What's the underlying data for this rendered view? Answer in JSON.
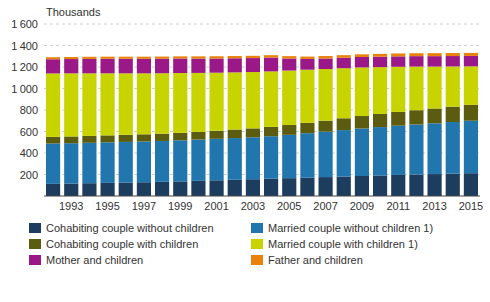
{
  "chart_data": {
    "type": "bar",
    "stacked": true,
    "grid": true,
    "legend": "bottom",
    "ylabel": "Thousands",
    "categories": [
      null,
      "1993",
      null,
      "1995",
      null,
      "1997",
      null,
      "1999",
      null,
      "2001",
      null,
      "2003",
      null,
      "2005",
      null,
      "2007",
      null,
      "2009",
      null,
      "2011",
      null,
      "2013",
      null,
      "2015"
    ],
    "series": [
      {
        "name": "Cohabiting couple without children",
        "color": "#1c3d5e",
        "values": [
          113,
          116,
          119,
          122,
          125,
          128,
          132,
          136,
          141,
          146,
          151,
          156,
          161,
          166,
          171,
          176,
          181,
          186,
          191,
          196,
          200,
          204,
          208,
          212
        ]
      },
      {
        "name": "Married couple without children 1)",
        "color": "#2176ae",
        "values": [
          375,
          375,
          376,
          377,
          378,
          379,
          380,
          382,
          384,
          386,
          388,
          390,
          395,
          403,
          413,
          422,
          432,
          442,
          450,
          458,
          465,
          472,
          480,
          488
        ]
      },
      {
        "name": "Cohabiting couple with children",
        "color": "#5c5c10",
        "values": [
          62,
          63,
          64,
          65,
          66,
          67,
          68,
          70,
          72,
          75,
          79,
          83,
          87,
          92,
          97,
          103,
          110,
          116,
          122,
          128,
          133,
          138,
          143,
          148
        ]
      },
      {
        "name": "Married couple with children 1)",
        "color": "#c8d400",
        "values": [
          590,
          587,
          582,
          577,
          572,
          567,
          562,
          556,
          548,
          540,
          532,
          524,
          516,
          506,
          494,
          480,
          466,
          452,
          436,
          420,
          406,
          390,
          374,
          358
        ]
      },
      {
        "name": "Mother and children",
        "color": "#9b1888",
        "values": [
          132,
          133,
          134,
          135,
          135,
          135,
          135,
          135,
          133,
          132,
          131,
          130,
          129,
          112,
          100,
          98,
          97,
          97,
          97,
          97,
          97,
          97,
          97,
          97
        ]
      },
      {
        "name": "Father and children",
        "color": "#e8820c",
        "values": [
          19,
          19,
          20,
          20,
          20,
          20,
          20,
          20,
          21,
          21,
          21,
          21,
          22,
          22,
          22,
          23,
          24,
          25,
          26,
          27,
          27,
          28,
          28,
          28
        ]
      }
    ],
    "ylim": [
      0,
      1600
    ],
    "yticks": [
      200,
      400,
      600,
      800,
      {
        "value": 1000,
        "label": "1 000"
      },
      {
        "value": 1200,
        "label": "1 200"
      },
      {
        "value": 1400,
        "label": "1 400"
      },
      {
        "value": 1600,
        "label": "1 600"
      }
    ]
  }
}
